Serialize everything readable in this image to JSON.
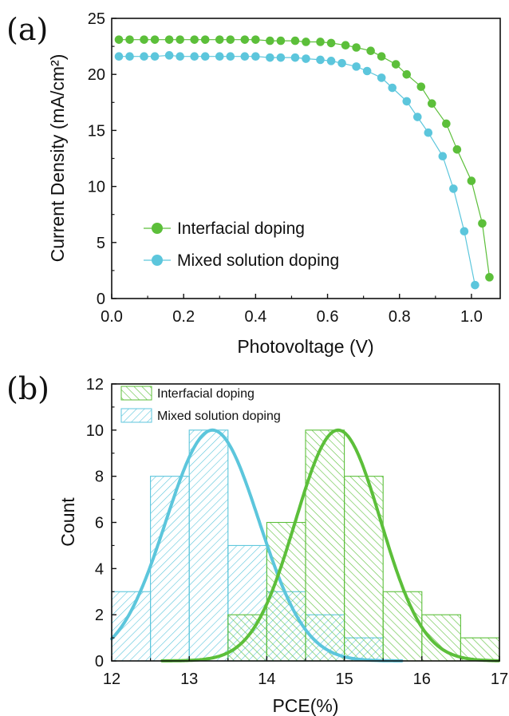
{
  "colors": {
    "green": "#5cbf3a",
    "blue": "#5cc6dc",
    "axis": "#111111"
  },
  "chart_data": [
    {
      "type": "scatter",
      "panel_label": "(a)",
      "xlabel": "Photovoltage (V)",
      "ylabel": "Current Density (mA/cm²)",
      "xlim": [
        0.0,
        1.08
      ],
      "ylim": [
        0,
        25
      ],
      "xticks": [
        "0.0",
        "0.2",
        "0.4",
        "0.6",
        "0.8",
        "1.0"
      ],
      "yticks": [
        "0",
        "5",
        "10",
        "15",
        "20",
        "25"
      ],
      "legend": "lower-left",
      "series": [
        {
          "name": "Interfacial doping",
          "color": "green",
          "x": [
            0.02,
            0.05,
            0.09,
            0.12,
            0.16,
            0.19,
            0.23,
            0.26,
            0.3,
            0.33,
            0.37,
            0.4,
            0.44,
            0.47,
            0.51,
            0.54,
            0.58,
            0.61,
            0.65,
            0.68,
            0.72,
            0.75,
            0.79,
            0.82,
            0.86,
            0.89,
            0.93,
            0.96,
            1.0,
            1.03,
            1.05
          ],
          "y": [
            23.1,
            23.1,
            23.1,
            23.1,
            23.1,
            23.1,
            23.1,
            23.1,
            23.1,
            23.1,
            23.1,
            23.1,
            23.0,
            23.0,
            23.0,
            22.9,
            22.9,
            22.8,
            22.6,
            22.4,
            22.1,
            21.6,
            20.9,
            20.0,
            18.9,
            17.4,
            15.6,
            13.3,
            10.5,
            6.7,
            1.9
          ]
        },
        {
          "name": "Mixed solution doping",
          "color": "blue",
          "x": [
            0.02,
            0.05,
            0.09,
            0.12,
            0.16,
            0.19,
            0.23,
            0.26,
            0.3,
            0.33,
            0.37,
            0.4,
            0.44,
            0.47,
            0.51,
            0.54,
            0.58,
            0.61,
            0.64,
            0.68,
            0.71,
            0.75,
            0.78,
            0.82,
            0.85,
            0.88,
            0.92,
            0.95,
            0.98,
            1.01
          ],
          "y": [
            21.6,
            21.6,
            21.6,
            21.6,
            21.7,
            21.6,
            21.6,
            21.6,
            21.6,
            21.6,
            21.6,
            21.6,
            21.5,
            21.5,
            21.5,
            21.4,
            21.3,
            21.2,
            21.0,
            20.7,
            20.3,
            19.7,
            18.8,
            17.6,
            16.2,
            14.8,
            12.7,
            9.8,
            6.0,
            1.2
          ]
        }
      ]
    },
    {
      "type": "bar",
      "panel_label": "(b)",
      "xlabel": "PCE(%)",
      "ylabel": "Count",
      "xlim": [
        12,
        17
      ],
      "ylim": [
        0,
        12
      ],
      "xticks": [
        "12",
        "13",
        "14",
        "15",
        "16",
        "17"
      ],
      "yticks": [
        "0",
        "2",
        "4",
        "6",
        "8",
        "10",
        "12"
      ],
      "legend": "top-left",
      "bin_edges": [
        12.0,
        12.5,
        13.0,
        13.5,
        14.0,
        14.5,
        15.0,
        15.5,
        16.0,
        16.5,
        17.0
      ],
      "series": [
        {
          "name": "Interfacial doping",
          "color": "green",
          "counts": [
            0,
            0,
            0,
            2,
            6,
            10,
            8,
            3,
            2,
            1
          ],
          "fit": {
            "mean": 14.92,
            "sd": 0.55,
            "peak": 10,
            "range": [
              12.65,
              17.0
            ]
          }
        },
        {
          "name": "Mixed solution doping",
          "color": "blue",
          "counts": [
            3,
            8,
            10,
            5,
            3,
            2,
            1,
            0,
            0,
            0
          ],
          "fit": {
            "mean": 13.3,
            "sd": 0.6,
            "peak": 10,
            "range": [
              12.0,
              15.75
            ]
          }
        }
      ]
    }
  ]
}
